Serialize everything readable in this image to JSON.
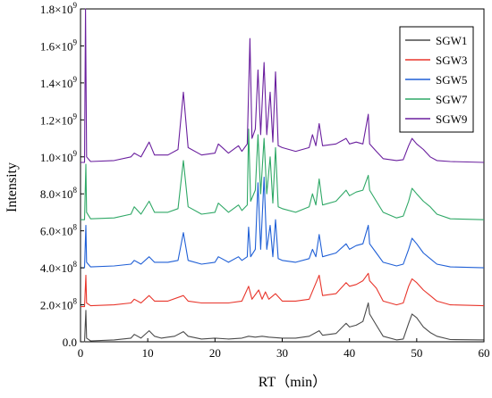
{
  "chart_data": {
    "type": "line",
    "xlabel": "RT（min）",
    "ylabel": "Intensity",
    "xlim": [
      0,
      60
    ],
    "ylim": [
      0,
      1800000000.0
    ],
    "xticks": [
      "0",
      "10",
      "20",
      "30",
      "40",
      "50",
      "60"
    ],
    "yticks": [
      {
        "mantissa": "0.0",
        "exp": ""
      },
      {
        "mantissa": "2.0×10",
        "exp": "8"
      },
      {
        "mantissa": "4.0×10",
        "exp": "8"
      },
      {
        "mantissa": "6.0×10",
        "exp": "8"
      },
      {
        "mantissa": "8.0×10",
        "exp": "8"
      },
      {
        "mantissa": "1.0×10",
        "exp": "9"
      },
      {
        "mantissa": "1.2×10",
        "exp": "9"
      },
      {
        "mantissa": "1.4×10",
        "exp": "9"
      },
      {
        "mantissa": "1.6×10",
        "exp": "9"
      },
      {
        "mantissa": "1.8×10",
        "exp": "9"
      }
    ],
    "legend_position": "top-right",
    "grid": false,
    "series": [
      {
        "name": "SGW1",
        "color": "#4a4a4a",
        "points": [
          [
            0,
            0
          ],
          [
            0.6,
            0
          ],
          [
            0.8,
            170000000.0
          ],
          [
            0.9,
            20000000.0
          ],
          [
            1.5,
            5000000.0
          ],
          [
            5,
            10000000.0
          ],
          [
            7.5,
            20000000.0
          ],
          [
            8,
            40000000.0
          ],
          [
            9,
            20000000.0
          ],
          [
            10.2,
            60000000.0
          ],
          [
            11,
            30000000.0
          ],
          [
            12,
            20000000.0
          ],
          [
            13,
            25000000.0
          ],
          [
            14,
            30000000.0
          ],
          [
            15.3,
            55000000.0
          ],
          [
            16,
            30000000.0
          ],
          [
            18,
            15000000.0
          ],
          [
            20,
            20000000.0
          ],
          [
            22,
            15000000.0
          ],
          [
            24,
            20000000.0
          ],
          [
            25,
            30000000.0
          ],
          [
            26,
            25000000.0
          ],
          [
            27,
            30000000.0
          ],
          [
            28,
            25000000.0
          ],
          [
            30,
            20000000.0
          ],
          [
            32,
            20000000.0
          ],
          [
            34,
            30000000.0
          ],
          [
            35.5,
            60000000.0
          ],
          [
            36,
            35000000.0
          ],
          [
            38,
            45000000.0
          ],
          [
            39.5,
            100000000.0
          ],
          [
            40,
            80000000.0
          ],
          [
            41,
            90000000.0
          ],
          [
            42,
            110000000.0
          ],
          [
            42.8,
            210000000.0
          ],
          [
            43,
            150000000.0
          ],
          [
            44,
            90000000.0
          ],
          [
            45,
            30000000.0
          ],
          [
            47,
            10000000.0
          ],
          [
            48,
            15000000.0
          ],
          [
            48.8,
            100000000.0
          ],
          [
            49.3,
            150000000.0
          ],
          [
            50,
            130000000.0
          ],
          [
            51,
            80000000.0
          ],
          [
            52,
            50000000.0
          ],
          [
            53,
            30000000.0
          ],
          [
            55,
            12000000.0
          ],
          [
            60,
            10000000.0
          ]
        ]
      },
      {
        "name": "SGW3",
        "color": "#e8352b",
        "points": [
          [
            0,
            190000000.0
          ],
          [
            0.6,
            190000000.0
          ],
          [
            0.8,
            360000000.0
          ],
          [
            0.9,
            210000000.0
          ],
          [
            1.5,
            195000000.0
          ],
          [
            5,
            200000000.0
          ],
          [
            7.5,
            210000000.0
          ],
          [
            8,
            230000000.0
          ],
          [
            9,
            210000000.0
          ],
          [
            10.2,
            250000000.0
          ],
          [
            11,
            220000000.0
          ],
          [
            13,
            220000000.0
          ],
          [
            15.3,
            250000000.0
          ],
          [
            16,
            220000000.0
          ],
          [
            18,
            210000000.0
          ],
          [
            20,
            210000000.0
          ],
          [
            22,
            210000000.0
          ],
          [
            24,
            220000000.0
          ],
          [
            25,
            300000000.0
          ],
          [
            25.5,
            230000000.0
          ],
          [
            26.5,
            280000000.0
          ],
          [
            27,
            230000000.0
          ],
          [
            27.5,
            270000000.0
          ],
          [
            28,
            230000000.0
          ],
          [
            29,
            260000000.0
          ],
          [
            30,
            220000000.0
          ],
          [
            32,
            220000000.0
          ],
          [
            34,
            230000000.0
          ],
          [
            35.5,
            360000000.0
          ],
          [
            36,
            250000000.0
          ],
          [
            38,
            260000000.0
          ],
          [
            39.5,
            320000000.0
          ],
          [
            40,
            300000000.0
          ],
          [
            41,
            310000000.0
          ],
          [
            42,
            330000000.0
          ],
          [
            42.8,
            370000000.0
          ],
          [
            43,
            330000000.0
          ],
          [
            44,
            290000000.0
          ],
          [
            45,
            220000000.0
          ],
          [
            47,
            200000000.0
          ],
          [
            48,
            210000000.0
          ],
          [
            48.8,
            300000000.0
          ],
          [
            49.3,
            340000000.0
          ],
          [
            50,
            320000000.0
          ],
          [
            51,
            280000000.0
          ],
          [
            52,
            250000000.0
          ],
          [
            53,
            220000000.0
          ],
          [
            55,
            200000000.0
          ],
          [
            60,
            195000000.0
          ]
        ]
      },
      {
        "name": "SGW5",
        "color": "#1f5fd6",
        "points": [
          [
            0,
            400000000.0
          ],
          [
            0.6,
            400000000.0
          ],
          [
            0.8,
            630000000.0
          ],
          [
            0.9,
            430000000.0
          ],
          [
            1.5,
            405000000.0
          ],
          [
            5,
            410000000.0
          ],
          [
            7.5,
            420000000.0
          ],
          [
            8,
            440000000.0
          ],
          [
            9,
            420000000.0
          ],
          [
            10.2,
            460000000.0
          ],
          [
            11,
            430000000.0
          ],
          [
            13,
            430000000.0
          ],
          [
            14.5,
            440000000.0
          ],
          [
            15.3,
            590000000.0
          ],
          [
            16,
            440000000.0
          ],
          [
            18,
            420000000.0
          ],
          [
            20,
            430000000.0
          ],
          [
            20.5,
            460000000.0
          ],
          [
            22,
            430000000.0
          ],
          [
            23.5,
            460000000.0
          ],
          [
            24,
            440000000.0
          ],
          [
            24.8,
            460000000.0
          ],
          [
            25,
            620000000.0
          ],
          [
            25.3,
            460000000.0
          ],
          [
            26,
            500000000.0
          ],
          [
            26.4,
            860000000.0
          ],
          [
            26.8,
            500000000.0
          ],
          [
            27.3,
            890000000.0
          ],
          [
            27.7,
            500000000.0
          ],
          [
            28.2,
            630000000.0
          ],
          [
            28.6,
            460000000.0
          ],
          [
            29,
            660000000.0
          ],
          [
            29.4,
            450000000.0
          ],
          [
            30,
            440000000.0
          ],
          [
            32,
            430000000.0
          ],
          [
            34,
            450000000.0
          ],
          [
            34.5,
            500000000.0
          ],
          [
            35,
            460000000.0
          ],
          [
            35.5,
            580000000.0
          ],
          [
            36,
            460000000.0
          ],
          [
            38,
            480000000.0
          ],
          [
            39.5,
            530000000.0
          ],
          [
            40,
            500000000.0
          ],
          [
            41,
            520000000.0
          ],
          [
            42,
            530000000.0
          ],
          [
            42.8,
            630000000.0
          ],
          [
            43,
            530000000.0
          ],
          [
            44,
            480000000.0
          ],
          [
            45,
            430000000.0
          ],
          [
            47,
            410000000.0
          ],
          [
            48,
            420000000.0
          ],
          [
            48.8,
            500000000.0
          ],
          [
            49.3,
            560000000.0
          ],
          [
            50,
            530000000.0
          ],
          [
            51,
            480000000.0
          ],
          [
            52,
            450000000.0
          ],
          [
            53,
            420000000.0
          ],
          [
            55,
            405000000.0
          ],
          [
            60,
            400000000.0
          ]
        ]
      },
      {
        "name": "SGW7",
        "color": "#2fa866",
        "points": [
          [
            0,
            660000000.0
          ],
          [
            0.6,
            660000000.0
          ],
          [
            0.8,
            960000000.0
          ],
          [
            0.9,
            700000000.0
          ],
          [
            1.5,
            665000000.0
          ],
          [
            5,
            670000000.0
          ],
          [
            7.5,
            690000000.0
          ],
          [
            8,
            730000000.0
          ],
          [
            9,
            690000000.0
          ],
          [
            10.2,
            760000000.0
          ],
          [
            11,
            700000000.0
          ],
          [
            13,
            700000000.0
          ],
          [
            14.5,
            720000000.0
          ],
          [
            15.3,
            980000000.0
          ],
          [
            16,
            730000000.0
          ],
          [
            18,
            690000000.0
          ],
          [
            20,
            700000000.0
          ],
          [
            20.5,
            750000000.0
          ],
          [
            22,
            700000000.0
          ],
          [
            23.5,
            740000000.0
          ],
          [
            24,
            710000000.0
          ],
          [
            24.8,
            740000000.0
          ],
          [
            25,
            1150000000.0
          ],
          [
            25.3,
            760000000.0
          ],
          [
            26,
            820000000.0
          ],
          [
            26.4,
            1120000000.0
          ],
          [
            26.8,
            800000000.0
          ],
          [
            27.3,
            1100000000.0
          ],
          [
            27.7,
            800000000.0
          ],
          [
            28.2,
            1000000000.0
          ],
          [
            28.6,
            750000000.0
          ],
          [
            29,
            1050000000.0
          ],
          [
            29.4,
            730000000.0
          ],
          [
            30,
            720000000.0
          ],
          [
            32,
            700000000.0
          ],
          [
            34,
            730000000.0
          ],
          [
            34.5,
            800000000.0
          ],
          [
            35,
            740000000.0
          ],
          [
            35.5,
            880000000.0
          ],
          [
            36,
            740000000.0
          ],
          [
            38,
            760000000.0
          ],
          [
            39.5,
            820000000.0
          ],
          [
            40,
            790000000.0
          ],
          [
            41,
            810000000.0
          ],
          [
            42,
            820000000.0
          ],
          [
            42.8,
            900000000.0
          ],
          [
            43,
            820000000.0
          ],
          [
            44,
            760000000.0
          ],
          [
            45,
            700000000.0
          ],
          [
            47,
            670000000.0
          ],
          [
            48,
            680000000.0
          ],
          [
            48.8,
            760000000.0
          ],
          [
            49.3,
            830000000.0
          ],
          [
            50,
            800000000.0
          ],
          [
            51,
            760000000.0
          ],
          [
            52,
            730000000.0
          ],
          [
            53,
            690000000.0
          ],
          [
            55,
            665000000.0
          ],
          [
            60,
            660000000.0
          ]
        ]
      },
      {
        "name": "SGW9",
        "color": "#6a1f9e",
        "points": [
          [
            0,
            970000000.0
          ],
          [
            0.6,
            970000000.0
          ],
          [
            0.75,
            1800000000.0
          ],
          [
            0.9,
            1000000000.0
          ],
          [
            1.5,
            975000000.0
          ],
          [
            5,
            980000000.0
          ],
          [
            7.5,
            1000000000.0
          ],
          [
            8,
            1020000000.0
          ],
          [
            9,
            1000000000.0
          ],
          [
            10.2,
            1080000000.0
          ],
          [
            11,
            1010000000.0
          ],
          [
            13,
            1010000000.0
          ],
          [
            14.5,
            1040000000.0
          ],
          [
            15.3,
            1350000000.0
          ],
          [
            16,
            1050000000.0
          ],
          [
            18,
            1010000000.0
          ],
          [
            20,
            1020000000.0
          ],
          [
            20.5,
            1070000000.0
          ],
          [
            22,
            1020000000.0
          ],
          [
            23.5,
            1060000000.0
          ],
          [
            24,
            1030000000.0
          ],
          [
            24.8,
            1070000000.0
          ],
          [
            25.2,
            1640000000.0
          ],
          [
            25.5,
            1100000000.0
          ],
          [
            26,
            1150000000.0
          ],
          [
            26.4,
            1470000000.0
          ],
          [
            26.8,
            1120000000.0
          ],
          [
            27.3,
            1510000000.0
          ],
          [
            27.7,
            1120000000.0
          ],
          [
            28.2,
            1350000000.0
          ],
          [
            28.6,
            1080000000.0
          ],
          [
            29,
            1460000000.0
          ],
          [
            29.4,
            1060000000.0
          ],
          [
            30,
            1050000000.0
          ],
          [
            32,
            1030000000.0
          ],
          [
            34,
            1050000000.0
          ],
          [
            34.5,
            1120000000.0
          ],
          [
            35,
            1060000000.0
          ],
          [
            35.5,
            1180000000.0
          ],
          [
            36,
            1060000000.0
          ],
          [
            38,
            1070000000.0
          ],
          [
            39.5,
            1100000000.0
          ],
          [
            40,
            1070000000.0
          ],
          [
            41,
            1080000000.0
          ],
          [
            42,
            1070000000.0
          ],
          [
            42.8,
            1230000000.0
          ],
          [
            43,
            1070000000.0
          ],
          [
            44,
            1030000000.0
          ],
          [
            45,
            990000000.0
          ],
          [
            47,
            980000000.0
          ],
          [
            48,
            985000000.0
          ],
          [
            48.8,
            1060000000.0
          ],
          [
            49.3,
            1100000000.0
          ],
          [
            50,
            1070000000.0
          ],
          [
            51,
            1040000000.0
          ],
          [
            52,
            1000000000.0
          ],
          [
            53,
            980000000.0
          ],
          [
            55,
            975000000.0
          ],
          [
            60,
            970000000.0
          ]
        ]
      }
    ]
  }
}
